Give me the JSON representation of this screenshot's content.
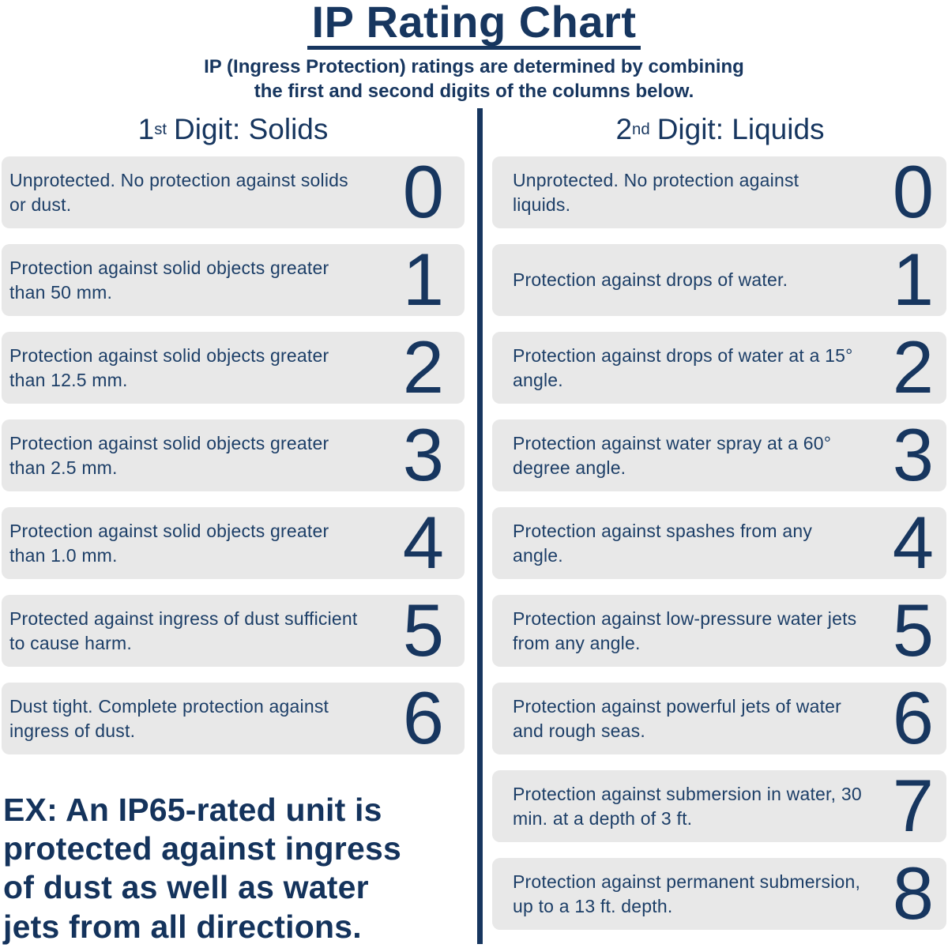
{
  "page": {
    "title": "IP Rating Chart",
    "subtitle": "IP (Ingress Protection) ratings are determined by combining\nthe first and second digits of the columns below.",
    "colors": {
      "navy": "#17365f",
      "row_background": "#e8e8e8"
    }
  },
  "columns": {
    "solids": {
      "heading": {
        "number": "1",
        "ordinal": "st",
        "rest": "Digit: Solids"
      },
      "rows": [
        {
          "digit": "0",
          "description": "Unprotected. No protection against solids or dust."
        },
        {
          "digit": "1",
          "description": "Protection against solid objects greater than 50 mm."
        },
        {
          "digit": "2",
          "description": "Protection against solid objects greater than 12.5 mm."
        },
        {
          "digit": "3",
          "description": "Protection against solid objects greater than 2.5 mm."
        },
        {
          "digit": "4",
          "description": "Protection against solid objects greater than 1.0 mm."
        },
        {
          "digit": "5",
          "description": "Protected against ingress of dust sufficient to cause harm."
        },
        {
          "digit": "6",
          "description": "Dust tight. Complete protection against ingress of dust."
        }
      ]
    },
    "liquids": {
      "heading": {
        "number": "2",
        "ordinal": "nd",
        "rest": "Digit: Liquids"
      },
      "rows": [
        {
          "digit": "0",
          "description": "Unprotected. No protection against liquids."
        },
        {
          "digit": "1",
          "description": "Protection against drops of water."
        },
        {
          "digit": "2",
          "description": "Protection against drops of water at a 15° angle."
        },
        {
          "digit": "3",
          "description": "Protection against water spray at a 60° degree angle."
        },
        {
          "digit": "4",
          "description": "Protection against spashes from any angle."
        },
        {
          "digit": "5",
          "description": "Protection against low-pressure water jets from any angle."
        },
        {
          "digit": "6",
          "description": "Protection against powerful jets of water and rough seas."
        },
        {
          "digit": "7",
          "description": "Protection against submersion in water, 30 min. at a depth of 3 ft."
        },
        {
          "digit": "8",
          "description": "Protection against permanent submersion, up to a 13 ft. depth."
        }
      ]
    }
  },
  "example": {
    "text": "EX: An IP65-rated unit is\nprotected against ingress\nof dust as well as water\njets from all directions."
  }
}
